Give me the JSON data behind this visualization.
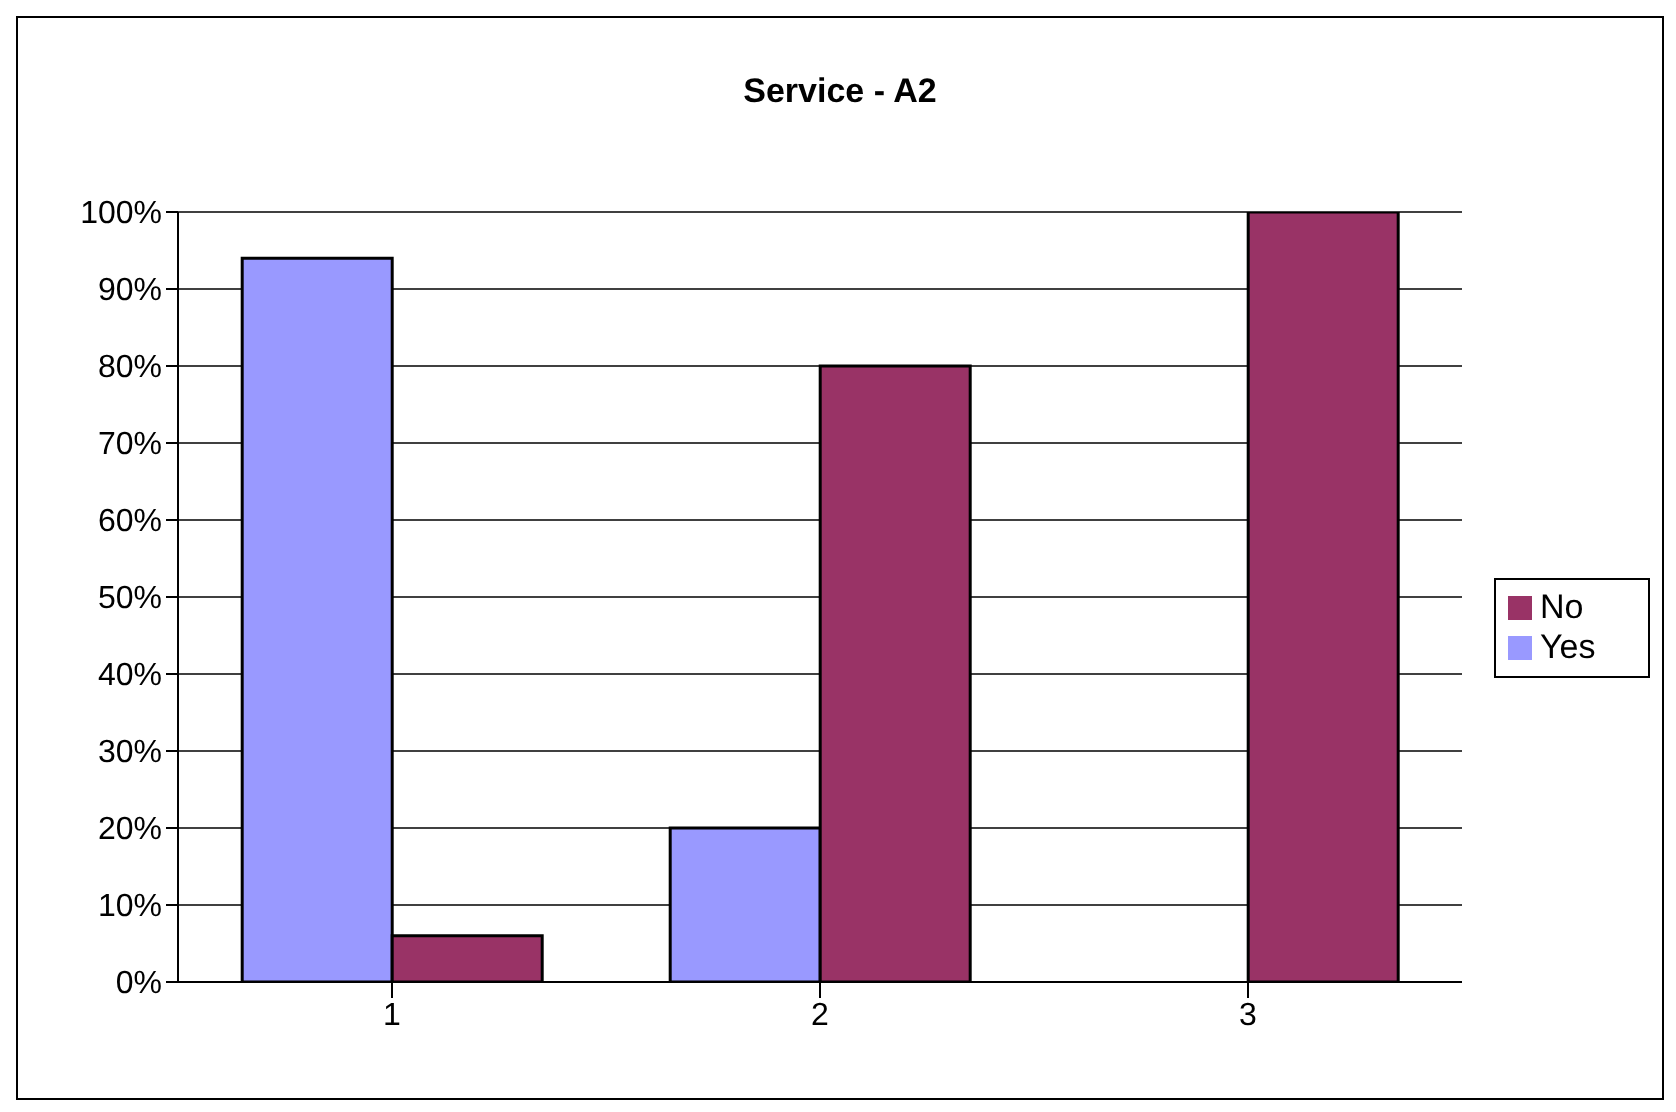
{
  "chart_data": {
    "type": "bar",
    "title": "Service - A2",
    "categories": [
      "1",
      "2",
      "3"
    ],
    "series": [
      {
        "name": "Yes",
        "color": "#9999ff",
        "values": [
          94,
          20,
          0
        ]
      },
      {
        "name": "No",
        "color": "#993366",
        "values": [
          6,
          80,
          100
        ]
      }
    ],
    "ylim": [
      0,
      100
    ],
    "yticks": [
      {
        "value": 0,
        "label": "0%"
      },
      {
        "value": 10,
        "label": "10%"
      },
      {
        "value": 20,
        "label": "20%"
      },
      {
        "value": 30,
        "label": "30%"
      },
      {
        "value": 40,
        "label": "40%"
      },
      {
        "value": 50,
        "label": "50%"
      },
      {
        "value": 60,
        "label": "60%"
      },
      {
        "value": 70,
        "label": "70%"
      },
      {
        "value": 80,
        "label": "80%"
      },
      {
        "value": 90,
        "label": "90%"
      },
      {
        "value": 100,
        "label": "100%"
      }
    ],
    "grid": "y",
    "legend": "right"
  }
}
